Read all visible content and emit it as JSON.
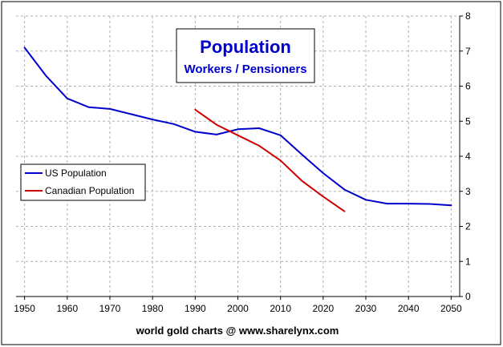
{
  "chart_data": {
    "type": "line",
    "title": "Population",
    "subtitle": "Workers / Pensioners",
    "footer": "world gold charts @ www.sharelynx.com",
    "xlim": [
      1948,
      2052
    ],
    "ylim": [
      0,
      8
    ],
    "x_ticks": [
      1950,
      1960,
      1970,
      1980,
      1990,
      2000,
      2010,
      2020,
      2030,
      2040,
      2050
    ],
    "y_ticks": [
      0,
      1,
      2,
      3,
      4,
      5,
      6,
      7,
      8
    ],
    "y_axis_side": "right",
    "grid": true,
    "legend_position": "left",
    "series": [
      {
        "name": "US Population",
        "color": "#0000cc",
        "x": [
          1950,
          1955,
          1960,
          1965,
          1970,
          1975,
          1980,
          1985,
          1990,
          1995,
          2000,
          2005,
          2010,
          2015,
          2020,
          2025,
          2030,
          2035,
          2040,
          2045,
          2050
        ],
        "y": [
          7.1,
          6.3,
          5.65,
          5.4,
          5.35,
          5.2,
          5.05,
          4.92,
          4.7,
          4.62,
          4.77,
          4.8,
          4.6,
          4.05,
          3.52,
          3.05,
          2.76,
          2.65,
          2.65,
          2.64,
          2.6
        ]
      },
      {
        "name": "Canadian Population",
        "color": "#cc0000",
        "x": [
          1990,
          1995,
          2000,
          2005,
          2010,
          2015,
          2020,
          2025
        ],
        "y": [
          5.33,
          4.9,
          4.6,
          4.3,
          3.88,
          3.3,
          2.85,
          2.43
        ]
      }
    ]
  }
}
